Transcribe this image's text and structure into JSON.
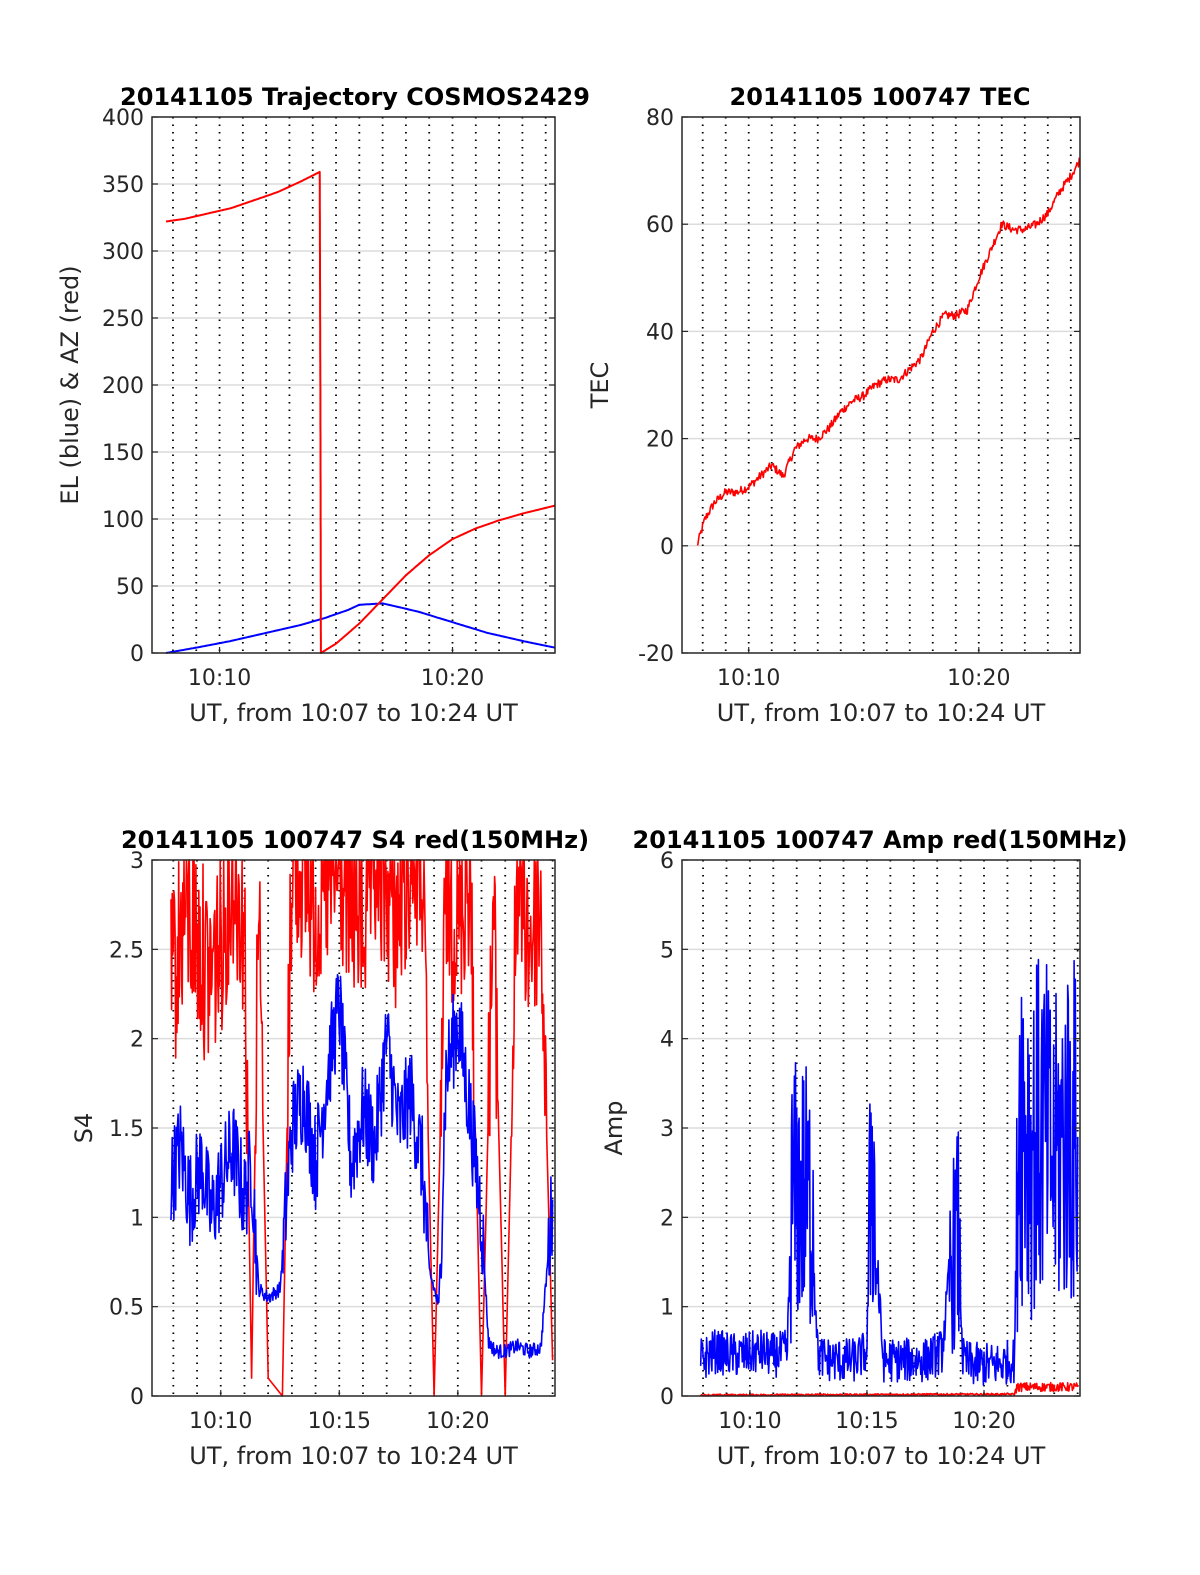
{
  "colors": {
    "el": "#0000ff",
    "az": "#ff0000",
    "tec": "#ff0000",
    "s4_red": "#ff0000",
    "s4_blue": "#0000ff",
    "amp_red": "#ff0000",
    "amp_blue": "#0000ff",
    "grid": "#dcdcdc"
  },
  "chart_data": [
    {
      "id": "trajectory",
      "type": "line",
      "title": "20141105 Trajectory COSMOS2429",
      "xlabel": "UT, from 10:07 to 10:24 UT",
      "ylabel": "EL (blue) & AZ (red)",
      "xlim_minutes": [
        7.1,
        24.4
      ],
      "ylim": [
        0,
        400
      ],
      "xticks": [
        10,
        20
      ],
      "xtick_labels": [
        "10:10",
        "10:20"
      ],
      "yticks": [
        0,
        50,
        100,
        150,
        200,
        250,
        300,
        350,
        400
      ],
      "ytick_labels": [
        "0",
        "50",
        "100",
        "150",
        "200",
        "250",
        "300",
        "350",
        "400"
      ],
      "grid": "dotted vertical lines every 1 min, horizontal gridlines",
      "series": [
        {
          "color": "blue",
          "x_minutes": [
            7.7,
            9,
            10.5,
            12,
            13.5,
            14.5,
            15.5,
            16,
            17,
            18.5,
            20,
            21.5,
            23,
            24.4
          ],
          "values": [
            0,
            4,
            9,
            15,
            21,
            26,
            32,
            36,
            37,
            31,
            23,
            15,
            9,
            4
          ]
        },
        {
          "color": "red",
          "x_minutes": [
            7.7,
            8.5,
            9.5,
            10.5,
            11.5,
            12.5,
            13.5,
            14.3,
            14.33,
            14.35,
            15,
            16,
            17,
            18,
            19,
            20,
            21,
            22,
            23,
            24.4
          ],
          "values": [
            322,
            324,
            328,
            332,
            338,
            344,
            352,
            359,
            180,
            0,
            7,
            22,
            40,
            58,
            73,
            85,
            93,
            99,
            104,
            110
          ]
        }
      ]
    },
    {
      "id": "tec",
      "type": "line",
      "title": "20141105 100747 TEC",
      "xlabel": "UT, from 10:07 to 10:24 UT",
      "ylabel": "TEC",
      "xlim_minutes": [
        7.1,
        24.4
      ],
      "ylim": [
        -20,
        80
      ],
      "xticks": [
        10,
        20
      ],
      "xtick_labels": [
        "10:10",
        "10:20"
      ],
      "yticks": [
        -20,
        0,
        20,
        40,
        60,
        80
      ],
      "ytick_labels": [
        "-20",
        "0",
        "20",
        "40",
        "60",
        "80"
      ],
      "series": [
        {
          "color": "red",
          "x_minutes": [
            7.75,
            8.1,
            8.5,
            9,
            9.5,
            10,
            10.5,
            11,
            11.5,
            12,
            12.5,
            13,
            13.5,
            14,
            14.5,
            15,
            15.5,
            16,
            16.5,
            17,
            17.5,
            18,
            18.5,
            19,
            19.5,
            20,
            20.5,
            21,
            21.5,
            22,
            22.5,
            23,
            23.5,
            24,
            24.4
          ],
          "values": [
            0,
            5,
            8,
            10,
            10,
            11,
            13,
            15,
            13,
            18,
            20,
            20,
            22,
            25,
            27,
            28,
            30,
            31,
            31,
            33,
            35,
            40,
            43,
            43,
            44,
            50,
            55,
            60,
            59,
            59,
            60,
            62,
            66,
            69,
            72
          ]
        }
      ]
    },
    {
      "id": "s4",
      "type": "line",
      "title": "20141105 100747 S4 red(150MHz)",
      "xlabel": "UT, from 10:07 to 10:24 UT",
      "ylabel": "S4",
      "xlim_minutes": [
        7.1,
        24.1
      ],
      "ylim": [
        0,
        3
      ],
      "xticks": [
        10,
        15,
        20
      ],
      "xtick_labels": [
        "10:10",
        "10:15",
        "10:20"
      ],
      "yticks": [
        0,
        0.5,
        1,
        1.5,
        2,
        2.5,
        3
      ],
      "ytick_labels": [
        "0",
        "0.5",
        "1",
        "1.5",
        "2",
        "2.5",
        "3"
      ],
      "series": [
        {
          "color": "red",
          "x_minutes": [
            7.9,
            8.5,
            9.0,
            9.5,
            10.0,
            10.5,
            11.0,
            11.3,
            11.6,
            12.0,
            12.6,
            13.0,
            13.5,
            14.0,
            14.5,
            15.0,
            15.5,
            16.0,
            16.5,
            17.0,
            17.5,
            18.0,
            18.5,
            19.0,
            19.5,
            20.0,
            20.5,
            21.0,
            21.5,
            22.0,
            22.5,
            23.0,
            23.5,
            24.0
          ],
          "values": [
            2.2,
            2.7,
            2.5,
            2.3,
            2.5,
            2.9,
            2.6,
            0.1,
            2.7,
            0.1,
            0.0,
            3.0,
            2.9,
            2.7,
            2.8,
            2.9,
            2.7,
            2.6,
            2.9,
            2.8,
            2.6,
            3.0,
            2.9,
            0.0,
            2.8,
            2.6,
            2.9,
            0.0,
            2.7,
            0.0,
            2.9,
            2.5,
            2.7,
            0.2
          ]
        },
        {
          "color": "blue",
          "x_minutes": [
            7.9,
            8.3,
            8.7,
            9.2,
            9.6,
            10.0,
            10.5,
            11.0,
            11.3,
            11.6,
            12.0,
            12.5,
            13.0,
            13.5,
            14.0,
            14.5,
            15.0,
            15.5,
            16.0,
            16.5,
            17.0,
            17.5,
            18.0,
            18.5,
            18.8,
            19.2,
            19.5,
            20.0,
            20.5,
            21.0,
            21.3,
            21.6,
            22.0,
            22.5,
            23.0,
            23.5,
            24.0
          ],
          "values": [
            1.2,
            1.4,
            1.1,
            1.3,
            1.0,
            1.2,
            1.4,
            1.1,
            1.3,
            0.6,
            0.55,
            0.6,
            1.5,
            1.7,
            1.3,
            1.8,
            2.2,
            1.3,
            1.6,
            1.4,
            2.0,
            1.5,
            1.7,
            1.3,
            0.7,
            0.5,
            1.8,
            2.1,
            1.6,
            1.0,
            0.3,
            0.25,
            0.25,
            0.28,
            0.25,
            0.27,
            1.1
          ]
        }
      ]
    },
    {
      "id": "amp",
      "type": "line",
      "title": "20141105 100747 Amp red(150MHz)",
      "xlabel": "UT, from 10:07 to 10:24 UT",
      "ylabel": "Amp",
      "xlim_minutes": [
        7.1,
        24.1
      ],
      "ylim": [
        0,
        6
      ],
      "xticks": [
        10,
        15,
        20
      ],
      "xtick_labels": [
        "10:10",
        "10:15",
        "10:20"
      ],
      "yticks": [
        0,
        1,
        2,
        3,
        4,
        5,
        6
      ],
      "ytick_labels": [
        "0",
        "1",
        "2",
        "3",
        "4",
        "5",
        "6"
      ],
      "series": [
        {
          "color": "red",
          "x_minutes": [
            7.9,
            21.3,
            21.4,
            24.0
          ],
          "values": [
            0.01,
            0.02,
            0.1,
            0.1
          ]
        },
        {
          "color": "blue",
          "x_minutes": [
            7.9,
            8.5,
            9.5,
            10.5,
            11.0,
            11.6,
            11.8,
            12.2,
            12.7,
            12.9,
            13.5,
            14.5,
            15.0,
            15.2,
            15.4,
            15.7,
            16.5,
            17.5,
            18.2,
            18.6,
            18.9,
            19.1,
            19.5,
            20.5,
            21.3,
            21.5,
            22.0,
            22.5,
            23.0,
            23.5,
            24.0
          ],
          "values": [
            0.4,
            0.5,
            0.45,
            0.5,
            0.45,
            0.5,
            2.2,
            2.3,
            2.1,
            0.45,
            0.4,
            0.4,
            0.5,
            3.0,
            1.5,
            0.4,
            0.4,
            0.4,
            0.5,
            1.5,
            1.8,
            0.4,
            0.35,
            0.35,
            0.4,
            3.5,
            2.8,
            3.0,
            2.6,
            3.0,
            2.9
          ]
        }
      ]
    }
  ]
}
